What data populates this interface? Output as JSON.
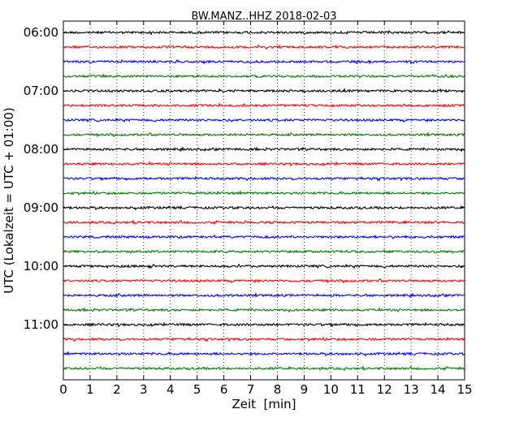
{
  "chart_data": {
    "type": "line",
    "title": "BW.MANZ..HHZ 2018-02-03",
    "xlabel": "Zeit  [min]",
    "ylabel": "UTC (Lokalzeit = UTC + 01:00)",
    "xlim": [
      0,
      15
    ],
    "x_ticks": [
      "0",
      "1",
      "2",
      "3",
      "4",
      "5",
      "6",
      "7",
      "8",
      "9",
      "10",
      "11",
      "12",
      "13",
      "14",
      "15"
    ],
    "y_ticks": [
      "06:00",
      "07:00",
      "08:00",
      "09:00",
      "10:00",
      "11:00"
    ],
    "trace_start_times": [
      "06:00",
      "06:15",
      "06:30",
      "06:45",
      "07:00",
      "07:15",
      "07:30",
      "07:45",
      "08:00",
      "08:15",
      "08:30",
      "08:45",
      "09:00",
      "09:15",
      "09:30",
      "09:45",
      "10:00",
      "10:15",
      "10:30",
      "10:45",
      "11:00",
      "11:15",
      "11:30",
      "11:45"
    ],
    "trace_minutes": 15,
    "grid": "vertical dotted at each minute",
    "colors": [
      "#000000",
      "#ff0000",
      "#0000ff",
      "#008000"
    ]
  }
}
